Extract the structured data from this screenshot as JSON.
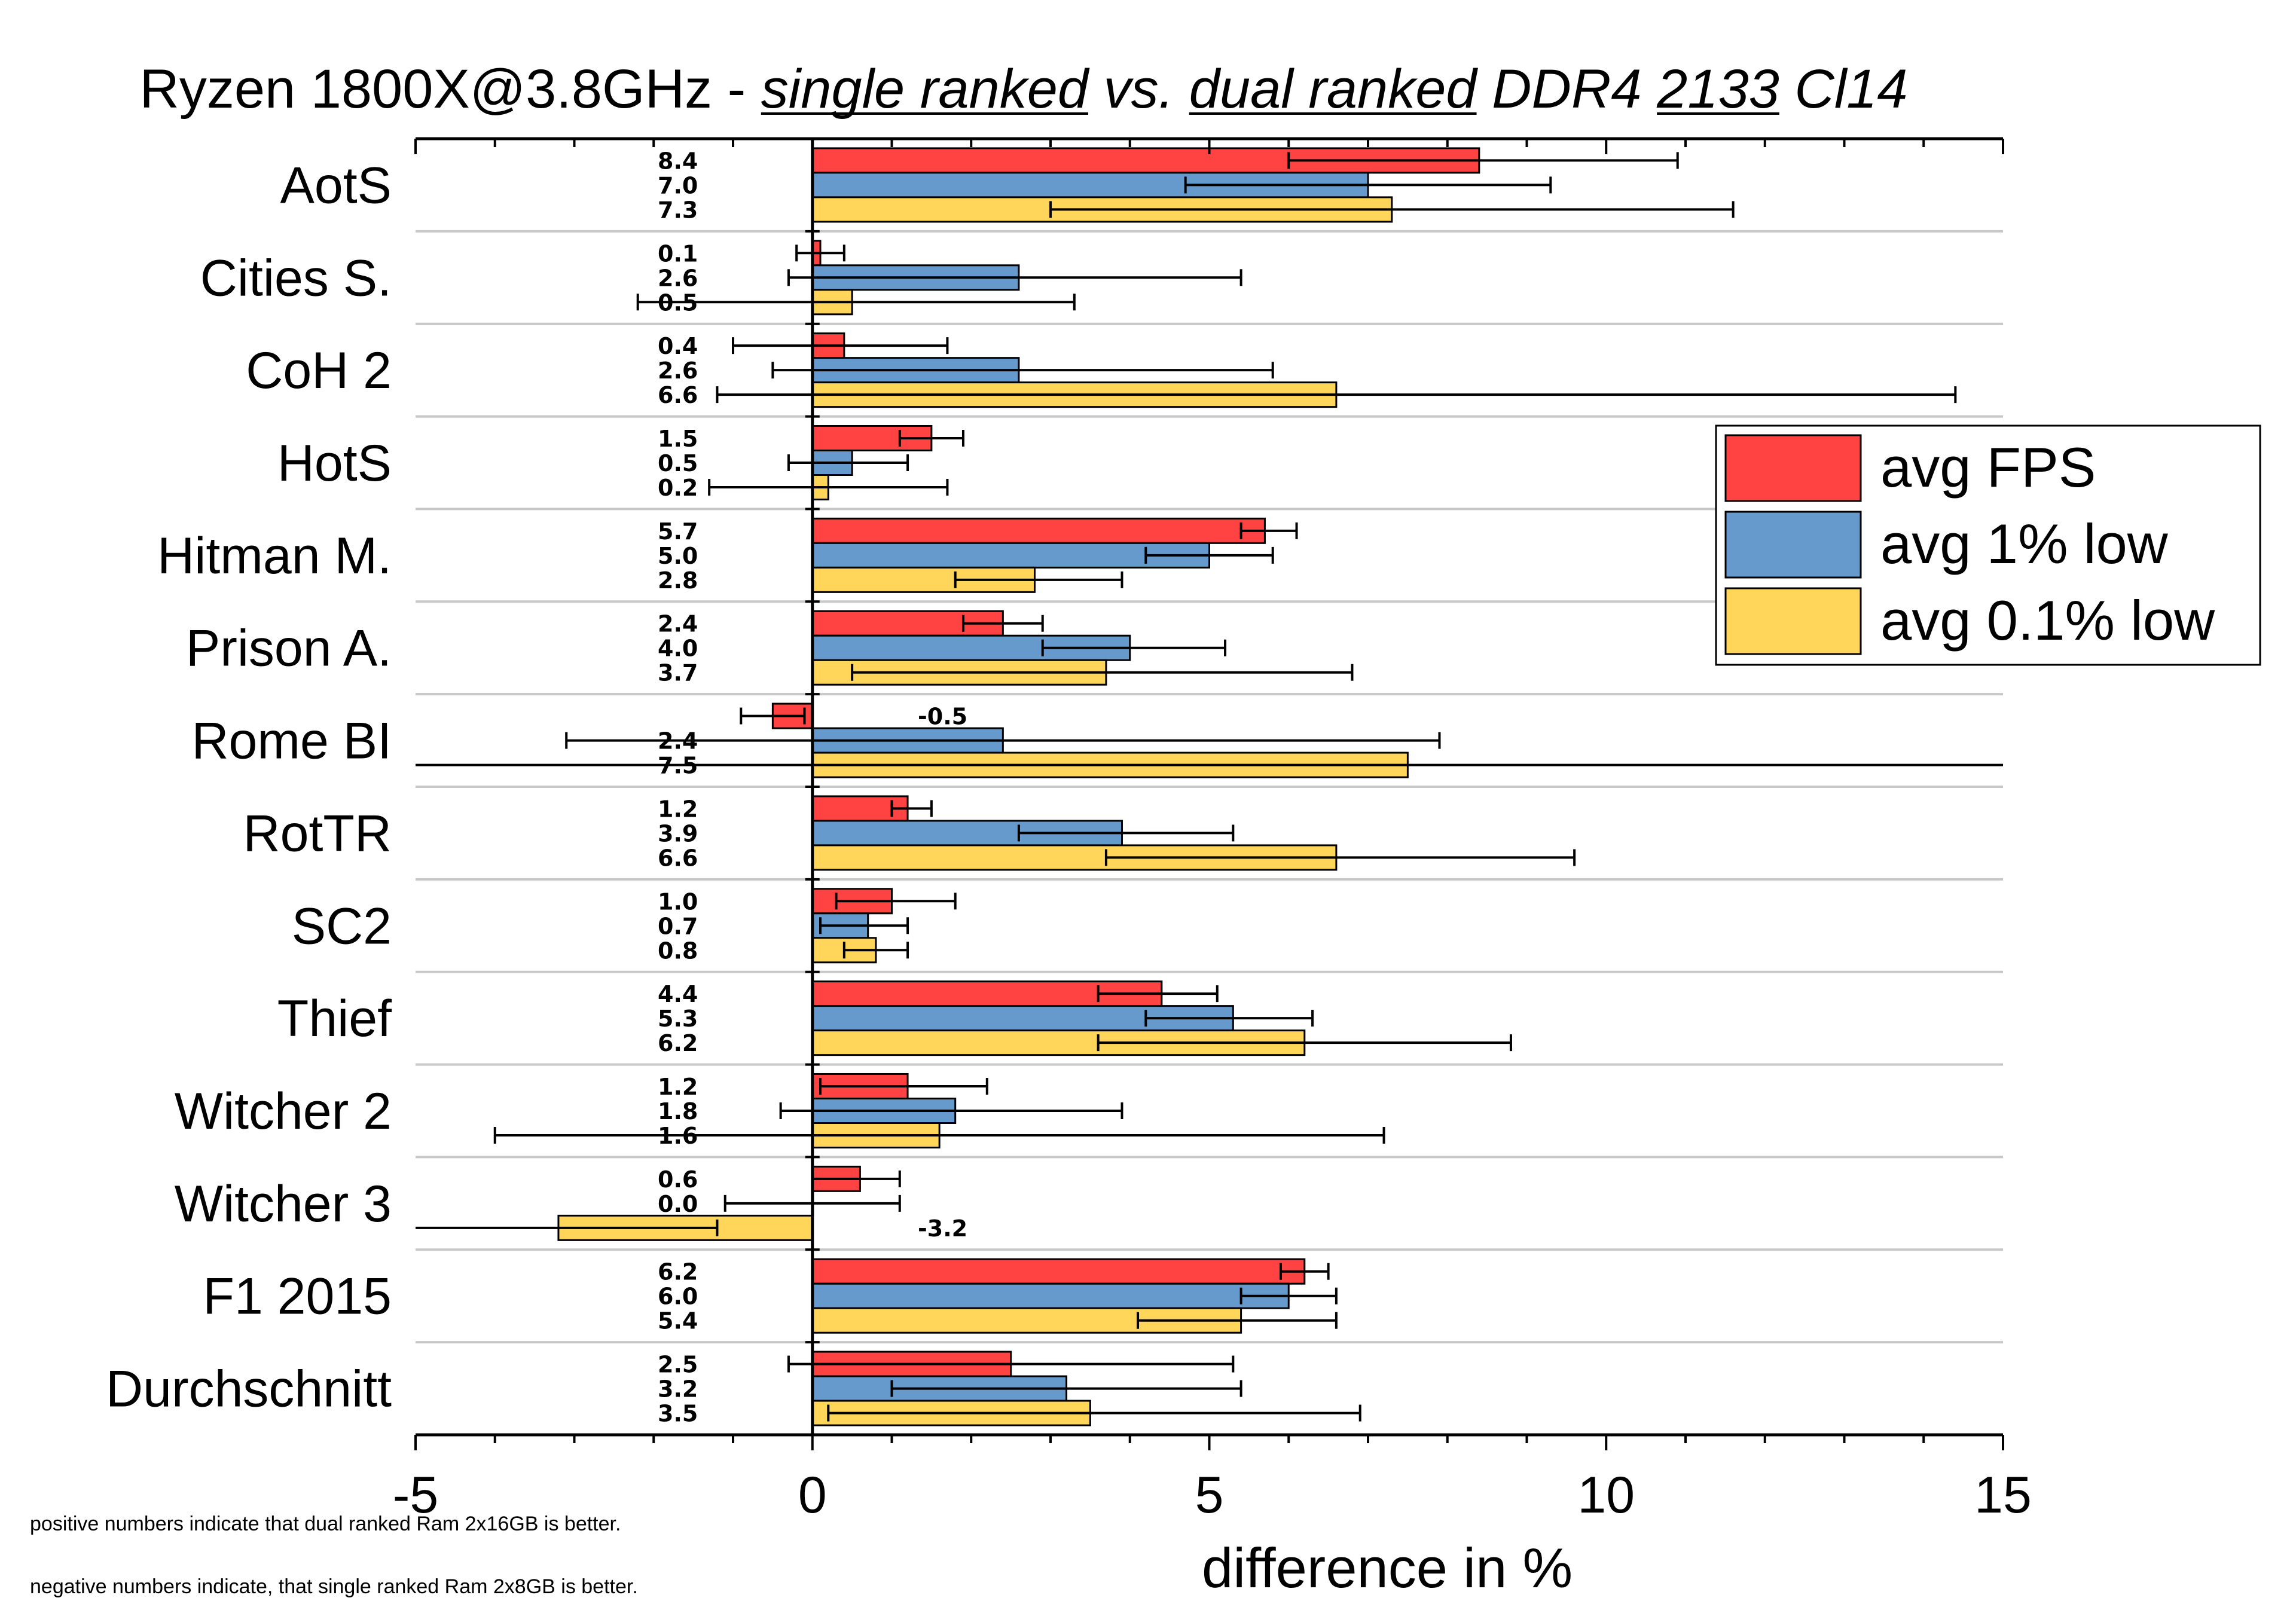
{
  "chart_data": {
    "type": "bar",
    "orientation": "horizontal",
    "title_parts": [
      {
        "text": "Ryzen 1800X@3.8GHz - ",
        "italic": false,
        "underline": false
      },
      {
        "text": "single ranked",
        "italic": true,
        "underline": true
      },
      {
        "text": " vs. ",
        "italic": true,
        "underline": false
      },
      {
        "text": "dual ranked",
        "italic": true,
        "underline": true
      },
      {
        "text": " DDR4 ",
        "italic": true,
        "underline": false
      },
      {
        "text": "2133",
        "italic": true,
        "underline": true
      },
      {
        "text": " Cl14",
        "italic": true,
        "underline": false
      }
    ],
    "xlabel": "difference in %",
    "xlim": [
      -5,
      15
    ],
    "xticks": [
      -5,
      0,
      5,
      10,
      15
    ],
    "xtick_labels": [
      "-5",
      "0",
      "5",
      "10",
      "15"
    ],
    "legend_position": "right",
    "categories": [
      "AotS",
      "Cities S.",
      "CoH 2",
      "HotS",
      "Hitman M.",
      "Prison A.",
      "Rome BI",
      "RotTR",
      "SC2",
      "Thief",
      "Witcher 2",
      "Witcher 3",
      "F1 2015",
      "Durchschnitt"
    ],
    "series": [
      {
        "name": "avg FPS",
        "color": "#ff4242",
        "values": [
          8.4,
          0.1,
          0.4,
          1.5,
          5.7,
          2.4,
          -0.5,
          1.2,
          1.0,
          4.4,
          1.2,
          0.6,
          6.2,
          2.5
        ],
        "labels": [
          "8.4",
          "0.1",
          "0.4",
          "1.5",
          "5.7",
          "2.4",
          "-0.5",
          "1.2",
          "1.0",
          "4.4",
          "1.2",
          "0.6",
          "6.2",
          "2.5"
        ],
        "error_low": [
          6.0,
          -0.2,
          -1.0,
          1.1,
          5.4,
          1.9,
          -0.9,
          1.0,
          0.3,
          3.6,
          0.1,
          0.0,
          5.9,
          -0.3
        ],
        "error_high": [
          10.9,
          0.4,
          1.7,
          1.9,
          6.1,
          2.9,
          -0.1,
          1.5,
          1.8,
          5.1,
          2.2,
          1.1,
          6.5,
          5.3
        ]
      },
      {
        "name": "avg 1% low",
        "color": "#6699cc",
        "values": [
          7.0,
          2.6,
          2.6,
          0.5,
          5.0,
          4.0,
          2.4,
          3.9,
          0.7,
          5.3,
          1.8,
          0.0,
          6.0,
          3.2
        ],
        "labels": [
          "7.0",
          "2.6",
          "2.6",
          "0.5",
          "5.0",
          "4.0",
          "2.4",
          "3.9",
          "0.7",
          "5.3",
          "1.8",
          "0.0",
          "6.0",
          "3.2"
        ],
        "error_low": [
          4.7,
          -0.3,
          -0.5,
          -0.3,
          4.2,
          2.9,
          -3.1,
          2.6,
          0.1,
          4.2,
          -0.4,
          -1.1,
          5.4,
          1.0
        ],
        "error_high": [
          9.3,
          5.4,
          5.8,
          1.2,
          5.8,
          5.2,
          7.9,
          5.3,
          1.2,
          6.3,
          3.9,
          1.1,
          6.6,
          5.4
        ]
      },
      {
        "name": "avg 0.1% low",
        "color": "#ffd659",
        "values": [
          7.3,
          0.5,
          6.6,
          0.2,
          2.8,
          3.7,
          7.5,
          6.6,
          0.8,
          6.2,
          1.6,
          -3.2,
          5.4,
          3.5
        ],
        "labels": [
          "7.3",
          "0.5",
          "6.6",
          "0.2",
          "2.8",
          "3.7",
          "7.5",
          "6.6",
          "0.8",
          "6.2",
          "1.6",
          "-3.2",
          "5.4",
          "3.5"
        ],
        "error_low": [
          3.0,
          -2.2,
          -1.2,
          -1.3,
          1.8,
          0.5,
          -5.0,
          3.7,
          0.4,
          3.6,
          -4.0,
          -5.0,
          4.1,
          0.2
        ],
        "error_high": [
          11.6,
          3.3,
          14.4,
          1.7,
          3.9,
          6.8,
          15.0,
          9.6,
          1.2,
          8.8,
          7.2,
          -1.2,
          6.6,
          6.9
        ]
      }
    ],
    "notes": [
      "positive numbers indicate that dual ranked Ram 2x16GB is better.",
      "negative numbers indicate, that single ranked Ram 2x8GB is better."
    ]
  }
}
